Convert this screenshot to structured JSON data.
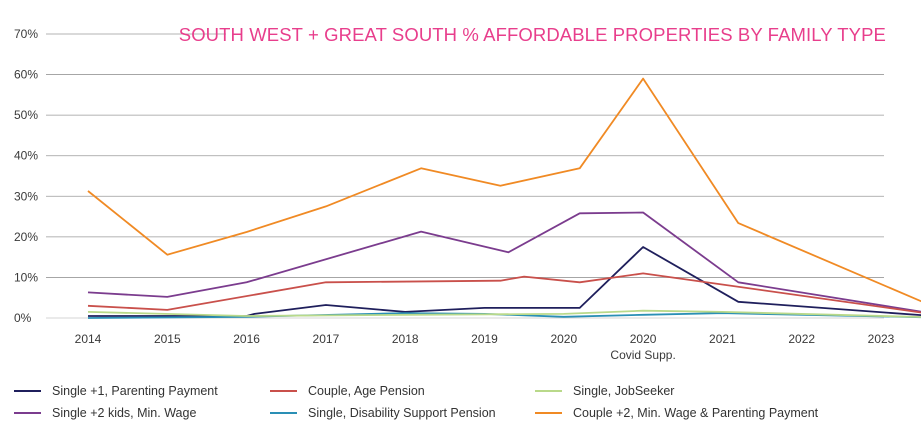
{
  "chart_data": {
    "type": "line",
    "title": "SOUTH WEST + GREAT SOUTH % AFFORDABLE PROPERTIES BY FAMILY TYPE",
    "title_color": "#e83e8c",
    "x_tick_labels": [
      "2014",
      "2015",
      "2016",
      "2017",
      "2018",
      "2019",
      "2020",
      "2020",
      "2021",
      "2022",
      "2023"
    ],
    "x_sublabel": "Covid Supp.",
    "y_tick_labels": [
      "0%",
      "10%",
      "20%",
      "30%",
      "40%",
      "50%",
      "60%",
      "70%"
    ],
    "ylim": [
      0,
      70
    ],
    "grid": true,
    "legend_position": "bottom",
    "series": [
      {
        "name": "Single +1, Parenting Payment",
        "color": "#1f1f5c",
        "points": [
          [
            0,
            0.5
          ],
          [
            1,
            0.5
          ],
          [
            2,
            0.5
          ],
          [
            2.1,
            1
          ],
          [
            3,
            3.2
          ],
          [
            4,
            1.5
          ],
          [
            5,
            2.5
          ],
          [
            6.2,
            2.5
          ],
          [
            7,
            17.5
          ],
          [
            8.2,
            4
          ],
          [
            11,
            0
          ]
        ]
      },
      {
        "name": "Single +2 kids, Min. Wage",
        "color": "#7b3c8e",
        "points": [
          [
            0,
            6.3
          ],
          [
            1,
            5.2
          ],
          [
            2,
            8.8
          ],
          [
            4.2,
            21.3
          ],
          [
            5.3,
            16.2
          ],
          [
            6.2,
            25.8
          ],
          [
            7,
            26
          ],
          [
            8.2,
            8.8
          ],
          [
            11,
            0
          ]
        ]
      },
      {
        "name": "Couple, Age Pension",
        "color": "#c9504b",
        "points": [
          [
            0,
            3
          ],
          [
            1,
            2
          ],
          [
            3,
            8.8
          ],
          [
            5.2,
            9.2
          ],
          [
            5.5,
            10.2
          ],
          [
            6.2,
            8.8
          ],
          [
            7,
            11
          ],
          [
            11,
            0
          ]
        ]
      },
      {
        "name": "Single, Disability Support Pension",
        "color": "#2a8fb5",
        "points": [
          [
            0,
            0
          ],
          [
            2,
            0.3
          ],
          [
            4,
            1.2
          ],
          [
            5,
            1
          ],
          [
            6,
            0.3
          ],
          [
            7,
            0.8
          ],
          [
            8,
            1.2
          ],
          [
            11,
            0
          ]
        ]
      },
      {
        "name": "Single, JobSeeker",
        "color": "#b9d98a",
        "points": [
          [
            0,
            1.5
          ],
          [
            2,
            0.5
          ],
          [
            4,
            0.8
          ],
          [
            6,
            1
          ],
          [
            7,
            1.8
          ],
          [
            8,
            1.5
          ],
          [
            11,
            0
          ]
        ]
      },
      {
        "name": "Couple +2, Min. Wage & Parenting Payment",
        "color": "#f08a24",
        "points": [
          [
            0,
            31.3
          ],
          [
            1,
            15.6
          ],
          [
            2,
            21.2
          ],
          [
            3,
            27.5
          ],
          [
            4.2,
            36.9
          ],
          [
            5.2,
            32.6
          ],
          [
            6.2,
            36.9
          ],
          [
            7,
            59
          ],
          [
            8.2,
            23.4
          ],
          [
            11,
            0
          ]
        ]
      }
    ]
  },
  "legend": [
    {
      "label": "Single +1, Parenting Payment",
      "color": "#1f1f5c"
    },
    {
      "label": "Couple, Age Pension",
      "color": "#c9504b"
    },
    {
      "label": "Single, JobSeeker",
      "color": "#b9d98a"
    },
    {
      "label": "Single +2 kids, Min. Wage",
      "color": "#7b3c8e"
    },
    {
      "label": "Single, Disability Support Pension",
      "color": "#2a8fb5"
    },
    {
      "label": "Couple +2, Min. Wage & Parenting Payment",
      "color": "#f08a24"
    }
  ]
}
